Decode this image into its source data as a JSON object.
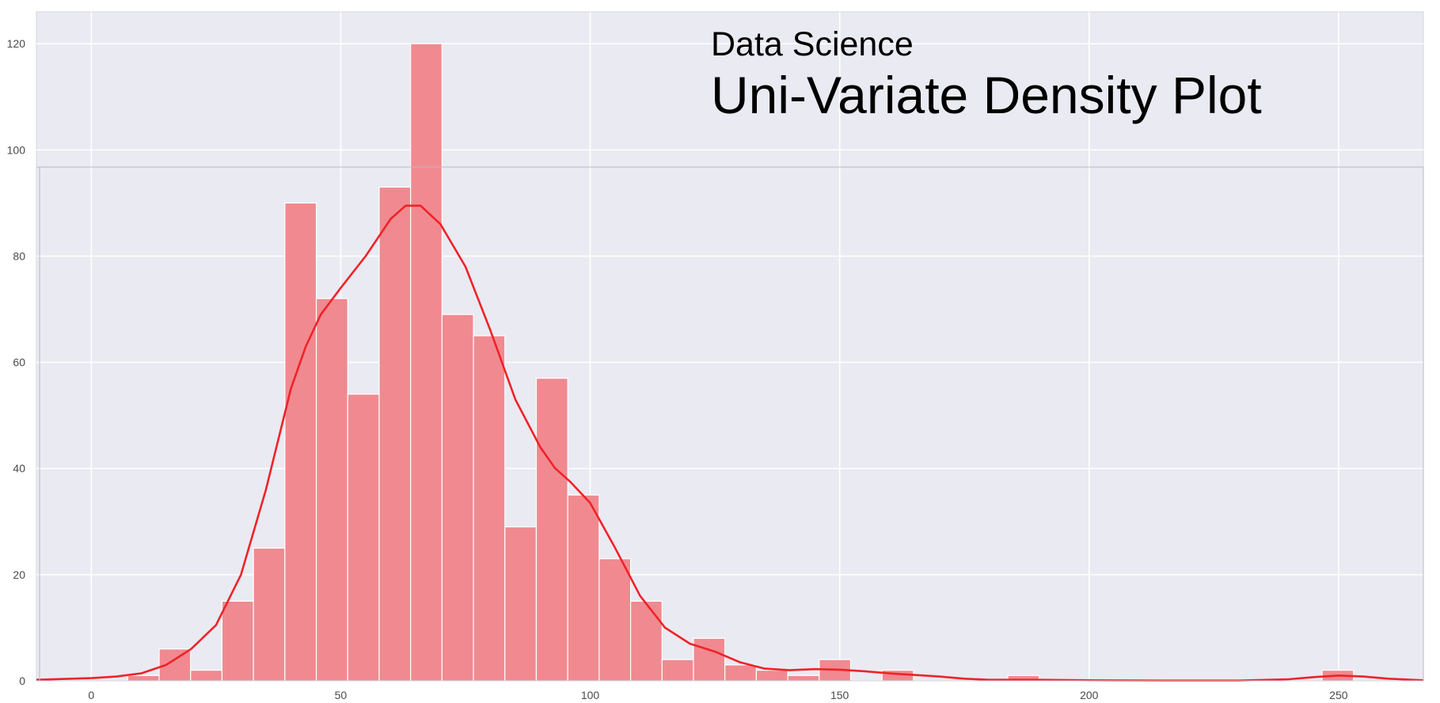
{
  "chart_data": {
    "type": "bar",
    "subtitle": "Data Science",
    "title": "Uni-Variate Density Plot",
    "xlabel": "",
    "ylabel": "",
    "xlim": [
      -11,
      267
    ],
    "ylim": [
      0,
      126
    ],
    "x_ticks": [
      0,
      50,
      100,
      150,
      200,
      250
    ],
    "y_ticks": [
      0,
      20,
      40,
      60,
      80,
      100,
      120
    ],
    "grid": true,
    "bin_width": 6.3,
    "bins": [
      {
        "x0": 1.0,
        "count": 0
      },
      {
        "x0": 7.3,
        "count": 1
      },
      {
        "x0": 13.6,
        "count": 6
      },
      {
        "x0": 19.9,
        "count": 2
      },
      {
        "x0": 26.2,
        "count": 15
      },
      {
        "x0": 32.5,
        "count": 25
      },
      {
        "x0": 38.8,
        "count": 90
      },
      {
        "x0": 45.1,
        "count": 72
      },
      {
        "x0": 51.4,
        "count": 54
      },
      {
        "x0": 57.7,
        "count": 93
      },
      {
        "x0": 64.0,
        "count": 120
      },
      {
        "x0": 70.3,
        "count": 69
      },
      {
        "x0": 76.6,
        "count": 65
      },
      {
        "x0": 82.9,
        "count": 29
      },
      {
        "x0": 89.2,
        "count": 57
      },
      {
        "x0": 95.5,
        "count": 35
      },
      {
        "x0": 101.8,
        "count": 23
      },
      {
        "x0": 108.1,
        "count": 15
      },
      {
        "x0": 114.4,
        "count": 4
      },
      {
        "x0": 120.7,
        "count": 8
      },
      {
        "x0": 127.0,
        "count": 3
      },
      {
        "x0": 133.3,
        "count": 2
      },
      {
        "x0": 139.6,
        "count": 1
      },
      {
        "x0": 145.9,
        "count": 4
      },
      {
        "x0": 152.2,
        "count": 0
      },
      {
        "x0": 158.5,
        "count": 2
      },
      {
        "x0": 164.8,
        "count": 0
      },
      {
        "x0": 171.1,
        "count": 0
      },
      {
        "x0": 177.4,
        "count": 0
      },
      {
        "x0": 183.7,
        "count": 1
      },
      {
        "x0": 190.0,
        "count": 0
      },
      {
        "x0": 196.3,
        "count": 0
      },
      {
        "x0": 202.6,
        "count": 0
      },
      {
        "x0": 208.9,
        "count": 0
      },
      {
        "x0": 215.2,
        "count": 0
      },
      {
        "x0": 221.5,
        "count": 0
      },
      {
        "x0": 227.8,
        "count": 0
      },
      {
        "x0": 234.1,
        "count": 0
      },
      {
        "x0": 240.4,
        "count": 0
      },
      {
        "x0": 246.7,
        "count": 2
      }
    ],
    "kde_curve": [
      [
        -11,
        0.2
      ],
      [
        0,
        0.5
      ],
      [
        5,
        0.8
      ],
      [
        10,
        1.4
      ],
      [
        15,
        3
      ],
      [
        20,
        6
      ],
      [
        25,
        10.5
      ],
      [
        30,
        20
      ],
      [
        35,
        36
      ],
      [
        40,
        55
      ],
      [
        43,
        63
      ],
      [
        46,
        69
      ],
      [
        50,
        74
      ],
      [
        55,
        80
      ],
      [
        60,
        87
      ],
      [
        63,
        89.5
      ],
      [
        66,
        89.5
      ],
      [
        70,
        86
      ],
      [
        75,
        78
      ],
      [
        80,
        66
      ],
      [
        85,
        53
      ],
      [
        90,
        44
      ],
      [
        93,
        40
      ],
      [
        96,
        37.5
      ],
      [
        100,
        33.5
      ],
      [
        105,
        25
      ],
      [
        110,
        16
      ],
      [
        115,
        10
      ],
      [
        120,
        7
      ],
      [
        125,
        5.5
      ],
      [
        130,
        3.5
      ],
      [
        135,
        2.3
      ],
      [
        140,
        2
      ],
      [
        145,
        2.2
      ],
      [
        150,
        2.1
      ],
      [
        155,
        1.8
      ],
      [
        160,
        1.4
      ],
      [
        165,
        1.1
      ],
      [
        170,
        0.8
      ],
      [
        175,
        0.4
      ],
      [
        180,
        0.2
      ],
      [
        190,
        0.2
      ],
      [
        200,
        0.1
      ],
      [
        215,
        0.05
      ],
      [
        230,
        0.05
      ],
      [
        240,
        0.3
      ],
      [
        245,
        0.7
      ],
      [
        250,
        1.0
      ],
      [
        255,
        0.8
      ],
      [
        260,
        0.4
      ],
      [
        267,
        0.1
      ]
    ],
    "colors": {
      "background": "#eaeaf2",
      "grid": "#ffffff",
      "bar_fill": "#f08a90",
      "bar_edge": "#ffffff",
      "kde_line": "#ee2328",
      "overlay_line": "#b8b8c4"
    }
  }
}
